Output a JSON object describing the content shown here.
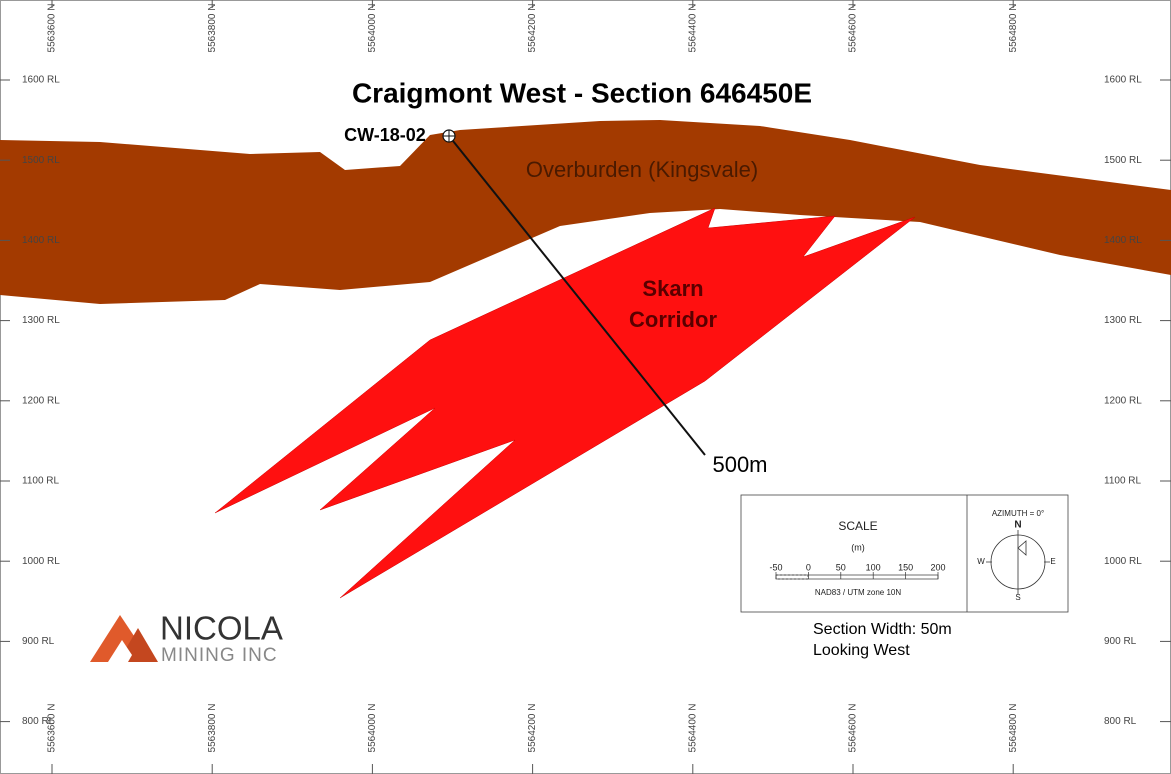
{
  "title": "Craigmont West - Section 646450E",
  "northings": [
    "5563600 N",
    "5563800 N",
    "5564000 N",
    "5564200 N",
    "5564400 N",
    "5564600 N",
    "5564800 N"
  ],
  "elevations": [
    "1600 RL",
    "1500 RL",
    "1400 RL",
    "1300 RL",
    "1200 RL",
    "1100 RL",
    "1000 RL",
    "900 RL",
    "800 RL"
  ],
  "drillhole": {
    "name": "CW-18-02",
    "depth_label": "500m"
  },
  "units": {
    "overburden": "Overburden (Kingsvale)",
    "skarn": [
      "Skarn",
      "Corridor"
    ]
  },
  "scale_box": {
    "title": "SCALE",
    "unit": "(m)",
    "ticks": [
      "-50",
      "0",
      "50",
      "100",
      "150",
      "200"
    ],
    "datum": "NAD83 / UTM zone 10N",
    "azimuth": "AZIMUTH = 0°",
    "compass": {
      "n": "N",
      "e": "E",
      "s": "S",
      "w": "W"
    }
  },
  "notes": [
    "Section Width: 50m",
    "Looking West"
  ],
  "logo": {
    "name": "NICOLA",
    "sub": "MINING INC"
  }
}
